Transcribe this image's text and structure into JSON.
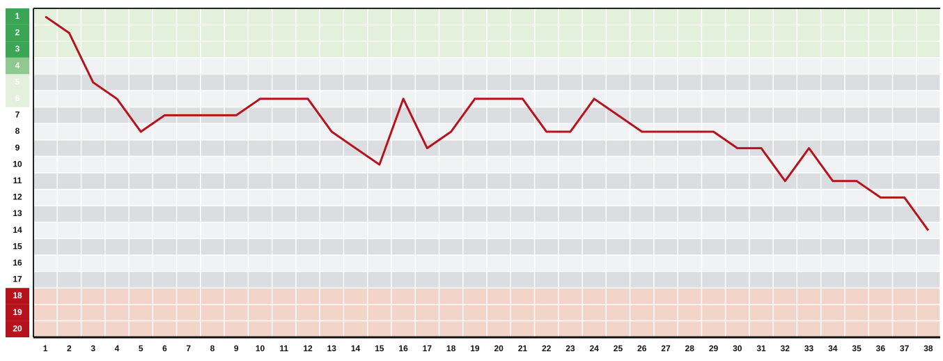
{
  "chart_data": {
    "type": "line",
    "x": [
      1,
      2,
      3,
      4,
      5,
      6,
      7,
      8,
      9,
      10,
      11,
      12,
      13,
      14,
      15,
      16,
      17,
      18,
      19,
      20,
      21,
      22,
      23,
      24,
      25,
      26,
      27,
      28,
      29,
      30,
      31,
      32,
      33,
      34,
      35,
      36,
      37,
      38
    ],
    "values": [
      1,
      2,
      5,
      6,
      8,
      7,
      7,
      7,
      7,
      6,
      6,
      6,
      8,
      9,
      10,
      6,
      9,
      8,
      6,
      6,
      6,
      8,
      8,
      6,
      7,
      8,
      8,
      8,
      8,
      9,
      9,
      11,
      9,
      11,
      11,
      12,
      12,
      14
    ],
    "color": "#b5121b",
    "xlim": [
      0.5,
      38.5
    ],
    "xticks": [
      1,
      2,
      3,
      4,
      5,
      6,
      7,
      8,
      9,
      10,
      11,
      12,
      13,
      14,
      15,
      16,
      17,
      18,
      19,
      20,
      21,
      22,
      23,
      24,
      25,
      26,
      27,
      28,
      29,
      30,
      31,
      32,
      33,
      34,
      35,
      36,
      37,
      38
    ],
    "ylim": [
      20.5,
      0.5
    ],
    "yticks": [
      1,
      2,
      3,
      4,
      5,
      6,
      7,
      8,
      9,
      10,
      11,
      12,
      13,
      14,
      15,
      16,
      17,
      18,
      19,
      20
    ],
    "ytick_colors": [
      "#3aa655",
      "#3aa655",
      "#3aa655",
      "#8fc98f",
      "#e2f0dc",
      "#e2f0dc",
      null,
      null,
      null,
      null,
      null,
      null,
      null,
      null,
      null,
      null,
      null,
      "#b5121b",
      "#b5121b",
      "#b5121b"
    ],
    "band_colors": [
      "#e2f0dc",
      "#e2f0dc",
      "#e2f0dc",
      "#f1f2f4",
      "#dcdde0",
      "#f1f2f4",
      "#dcdde0",
      "#f1f2f4",
      "#dcdde0",
      "#f1f2f4",
      "#dcdde0",
      "#f1f2f4",
      "#dcdde0",
      "#f1f2f4",
      "#dcdde0",
      "#f1f2f4",
      "#dcdde0",
      "#f2d4c8",
      "#f2d4c8",
      "#f2d4c8"
    ],
    "grid": true
  }
}
